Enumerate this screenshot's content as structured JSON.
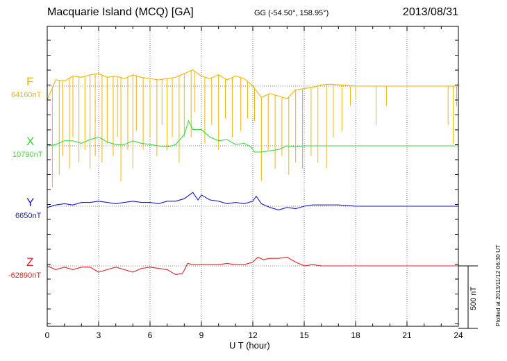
{
  "header": {
    "title": "Macquarie Island (MCQ)  [GA]",
    "coords": "GG (-54.50°, 158.95°)",
    "date": "2013/08/31"
  },
  "footer": {
    "plotted": "Plotted at 2013/11/12 06:30 UT",
    "scale": "500 nT"
  },
  "chart_data": {
    "type": "line",
    "xlabel": "U T (hour)",
    "xlim": [
      0,
      24
    ],
    "xticks": [
      0,
      3,
      6,
      9,
      12,
      15,
      18,
      21,
      24
    ],
    "xtick_labels": [
      "0",
      "3",
      "6",
      "9",
      "12",
      "15",
      "18",
      "21",
      "24"
    ],
    "grid": true,
    "scale_bar_nT": 500,
    "series": [
      {
        "name": "F",
        "baseline_label": "64160nT",
        "color": "#f5b400",
        "baseline": 64160,
        "x": [
          0,
          0.5,
          1,
          1.5,
          2,
          2.5,
          3,
          3.5,
          4,
          4.5,
          5,
          5.5,
          6,
          6.5,
          7,
          7.5,
          8,
          8.5,
          9,
          9.5,
          10,
          10.5,
          11,
          11.5,
          12,
          12.5,
          13,
          13.5,
          14,
          14.5,
          15,
          15.5,
          16,
          16.5,
          17,
          17.5,
          18,
          19,
          20,
          21,
          22,
          23,
          24
        ],
        "values": [
          64050,
          64210,
          64200,
          64240,
          64230,
          64250,
          64260,
          64230,
          64240,
          64220,
          64250,
          64230,
          64220,
          64210,
          64220,
          64230,
          64260,
          64290,
          64240,
          64220,
          64250,
          64210,
          64240,
          64220,
          64160,
          64070,
          64100,
          64080,
          64060,
          64130,
          64140,
          64150,
          64170,
          64175,
          64170,
          64165,
          64160,
          64160,
          64160,
          64160,
          64160,
          64160,
          64160
        ],
        "spikes": [
          {
            "x": 0.3,
            "v": 63350
          },
          {
            "x": 0.7,
            "v": 63450
          },
          {
            "x": 0.9,
            "v": 63600
          },
          {
            "x": 1.3,
            "v": 63500
          },
          {
            "x": 1.5,
            "v": 63750
          },
          {
            "x": 1.85,
            "v": 63550
          },
          {
            "x": 2.2,
            "v": 63650
          },
          {
            "x": 2.5,
            "v": 63500
          },
          {
            "x": 2.8,
            "v": 63600
          },
          {
            "x": 3.2,
            "v": 63550
          },
          {
            "x": 3.5,
            "v": 63700
          },
          {
            "x": 3.85,
            "v": 63600
          },
          {
            "x": 4.1,
            "v": 63750
          },
          {
            "x": 4.3,
            "v": 63400
          },
          {
            "x": 4.7,
            "v": 63650
          },
          {
            "x": 5.0,
            "v": 63500
          },
          {
            "x": 5.2,
            "v": 63800
          },
          {
            "x": 5.6,
            "v": 63650
          },
          {
            "x": 6.0,
            "v": 63750
          },
          {
            "x": 6.4,
            "v": 63600
          },
          {
            "x": 6.7,
            "v": 63850
          },
          {
            "x": 7.0,
            "v": 63650
          },
          {
            "x": 7.3,
            "v": 63750
          },
          {
            "x": 7.7,
            "v": 63550
          },
          {
            "x": 8.0,
            "v": 63750
          },
          {
            "x": 8.4,
            "v": 63750
          },
          {
            "x": 8.6,
            "v": 63950
          },
          {
            "x": 9.2,
            "v": 63700
          },
          {
            "x": 9.6,
            "v": 63850
          },
          {
            "x": 10.0,
            "v": 63650
          },
          {
            "x": 10.4,
            "v": 63900
          },
          {
            "x": 10.8,
            "v": 63750
          },
          {
            "x": 11.3,
            "v": 63800
          },
          {
            "x": 11.7,
            "v": 63900
          },
          {
            "x": 12.1,
            "v": 63880
          },
          {
            "x": 12.5,
            "v": 63400
          },
          {
            "x": 12.9,
            "v": 63650
          },
          {
            "x": 13.3,
            "v": 63500
          },
          {
            "x": 13.7,
            "v": 63600
          },
          {
            "x": 14.1,
            "v": 63450
          },
          {
            "x": 14.5,
            "v": 63550
          },
          {
            "x": 14.9,
            "v": 63500
          },
          {
            "x": 15.4,
            "v": 63600
          },
          {
            "x": 15.8,
            "v": 63550
          },
          {
            "x": 16.3,
            "v": 63500
          },
          {
            "x": 16.7,
            "v": 63750
          },
          {
            "x": 17.2,
            "v": 63800
          },
          {
            "x": 17.7,
            "v": 64000
          },
          {
            "x": 18.0,
            "v": 64050
          },
          {
            "x": 19.2,
            "v": 63850
          },
          {
            "x": 19.8,
            "v": 64000
          },
          {
            "x": 23.4,
            "v": 63850
          },
          {
            "x": 23.7,
            "v": 63700
          },
          {
            "x": 23.9,
            "v": 64000
          }
        ]
      },
      {
        "name": "X",
        "baseline_label": "10790nT",
        "color": "#33dd33",
        "baseline": 10790,
        "x": [
          0,
          0.5,
          1,
          1.5,
          2,
          2.5,
          3,
          3.5,
          4,
          4.5,
          5,
          5.5,
          6,
          6.5,
          7,
          7.5,
          8,
          8.25,
          8.5,
          9,
          9.5,
          10,
          10.5,
          11,
          11.5,
          11.9,
          12.1,
          12.5,
          13,
          13.5,
          14,
          14.5,
          15,
          15.5,
          16,
          17,
          18,
          19,
          20,
          21,
          22,
          23,
          24
        ],
        "values": [
          10790,
          10800,
          10830,
          10830,
          10810,
          10840,
          10860,
          10820,
          10800,
          10800,
          10830,
          10810,
          10800,
          10790,
          10780,
          10800,
          10880,
          10990,
          10920,
          10920,
          10860,
          10830,
          10840,
          10800,
          10810,
          10780,
          10740,
          10740,
          10750,
          10760,
          10790,
          10780,
          10790,
          10790,
          10790,
          10790,
          10790,
          10790,
          10790,
          10790,
          10790,
          10790,
          10790
        ]
      },
      {
        "name": "Y",
        "baseline_label": "6650nT",
        "color": "#1a1acc",
        "baseline": 6650,
        "x": [
          0,
          0.5,
          1,
          1.5,
          2,
          2.5,
          3,
          3.5,
          4,
          4.5,
          5,
          5.5,
          6,
          6.5,
          7,
          7.5,
          8,
          8.5,
          8.8,
          9,
          9.5,
          10,
          10.5,
          11,
          11.5,
          12,
          12.2,
          12.5,
          13,
          13.5,
          14,
          14.5,
          15,
          15.5,
          16,
          17,
          18,
          19,
          20,
          21,
          22,
          23,
          24
        ],
        "values": [
          6640,
          6660,
          6670,
          6660,
          6680,
          6680,
          6690,
          6680,
          6670,
          6680,
          6690,
          6680,
          6680,
          6670,
          6690,
          6690,
          6710,
          6760,
          6700,
          6740,
          6700,
          6690,
          6670,
          6680,
          6670,
          6690,
          6730,
          6670,
          6640,
          6620,
          6640,
          6630,
          6650,
          6660,
          6660,
          6660,
          6650,
          6650,
          6650,
          6650,
          6650,
          6650,
          6650
        ]
      },
      {
        "name": "Z",
        "baseline_label": "-62890nT",
        "color": "#dd2222",
        "baseline": -62890,
        "x": [
          0,
          0.5,
          1,
          1.5,
          2,
          2.5,
          3,
          3.5,
          4,
          4.5,
          5,
          5.5,
          6,
          6.5,
          7,
          7.5,
          7.9,
          8.2,
          8.5,
          9,
          9.5,
          10,
          10.5,
          11,
          11.5,
          12,
          12.3,
          12.6,
          13,
          13.5,
          14,
          14.5,
          15,
          15.5,
          16,
          17,
          18,
          19,
          20,
          21,
          22,
          23,
          24
        ],
        "values": [
          -62890,
          -62920,
          -62900,
          -62920,
          -62900,
          -62900,
          -62940,
          -62920,
          -62900,
          -62920,
          -62940,
          -62910,
          -62900,
          -62910,
          -62920,
          -62960,
          -62950,
          -62870,
          -62880,
          -62880,
          -62880,
          -62880,
          -62870,
          -62880,
          -62880,
          -62860,
          -62820,
          -62840,
          -62830,
          -62830,
          -62820,
          -62860,
          -62890,
          -62880,
          -62890,
          -62890,
          -62890,
          -62890,
          -62890,
          -62890,
          -62890,
          -62890,
          -62890
        ]
      }
    ]
  }
}
